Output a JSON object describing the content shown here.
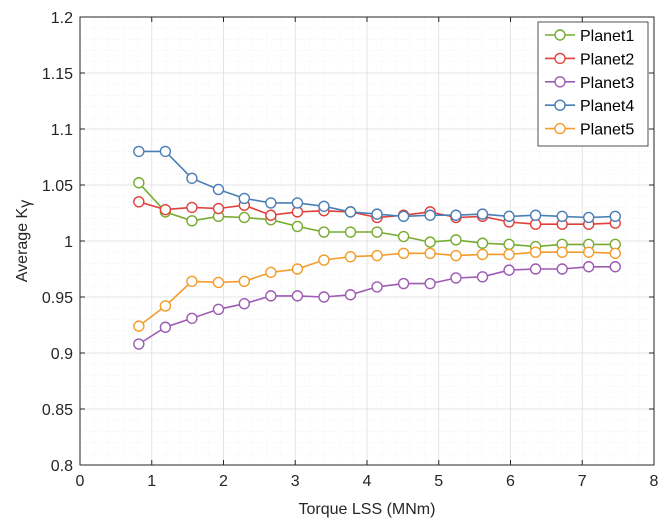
{
  "chart_data": {
    "type": "line",
    "xlabel": "Torque LSS (MNm)",
    "ylabel": {
      "main": "Average  K",
      "subscript": "γ"
    },
    "xlim": [
      0,
      8
    ],
    "ylim": [
      0.8,
      1.2
    ],
    "x_ticks": [
      0,
      1,
      2,
      3,
      4,
      5,
      6,
      7,
      8
    ],
    "y_ticks": [
      0.8,
      0.85,
      0.9,
      0.95,
      1,
      1.05,
      1.1,
      1.15,
      1.2
    ],
    "x_tick_labels": [
      "0",
      "1",
      "2",
      "3",
      "4",
      "5",
      "6",
      "7",
      "8"
    ],
    "y_tick_labels": [
      "0.8",
      "0.85",
      "0.9",
      "0.95",
      "1",
      "1.05",
      "1.1",
      "1.15",
      "1.2"
    ],
    "grid": true,
    "minor_grid": true,
    "marker": "circle",
    "legend_position": "top-right",
    "x": [
      0.82,
      1.19,
      1.56,
      1.93,
      2.29,
      2.66,
      3.03,
      3.4,
      3.77,
      4.14,
      4.51,
      4.88,
      5.24,
      5.61,
      5.98,
      6.35,
      6.72,
      7.09,
      7.46
    ],
    "series": [
      {
        "name": "Planet1",
        "color": "#77ac30",
        "values": [
          1.052,
          1.026,
          1.018,
          1.022,
          1.021,
          1.019,
          1.013,
          1.008,
          1.008,
          1.008,
          1.004,
          0.999,
          1.001,
          0.998,
          0.997,
          0.995,
          0.997,
          0.997,
          0.997
        ]
      },
      {
        "name": "Planet2",
        "color": "#e0403a",
        "values": [
          1.035,
          1.028,
          1.03,
          1.029,
          1.032,
          1.023,
          1.026,
          1.027,
          1.026,
          1.021,
          1.023,
          1.026,
          1.021,
          1.022,
          1.017,
          1.015,
          1.015,
          1.015,
          1.016
        ]
      },
      {
        "name": "Planet3",
        "color": "#9d5cb3",
        "values": [
          0.908,
          0.923,
          0.931,
          0.939,
          0.944,
          0.951,
          0.951,
          0.95,
          0.952,
          0.959,
          0.962,
          0.962,
          0.967,
          0.968,
          0.974,
          0.975,
          0.975,
          0.977,
          0.977
        ]
      },
      {
        "name": "Planet4",
        "color": "#4a7eb5",
        "values": [
          1.08,
          1.08,
          1.056,
          1.046,
          1.038,
          1.034,
          1.034,
          1.031,
          1.026,
          1.024,
          1.022,
          1.023,
          1.023,
          1.024,
          1.022,
          1.023,
          1.022,
          1.021,
          1.022
        ]
      },
      {
        "name": "Planet5",
        "color": "#f39c2b",
        "values": [
          0.924,
          0.942,
          0.964,
          0.963,
          0.964,
          0.972,
          0.975,
          0.983,
          0.986,
          0.987,
          0.989,
          0.989,
          0.987,
          0.988,
          0.988,
          0.99,
          0.99,
          0.99,
          0.989
        ]
      }
    ]
  }
}
